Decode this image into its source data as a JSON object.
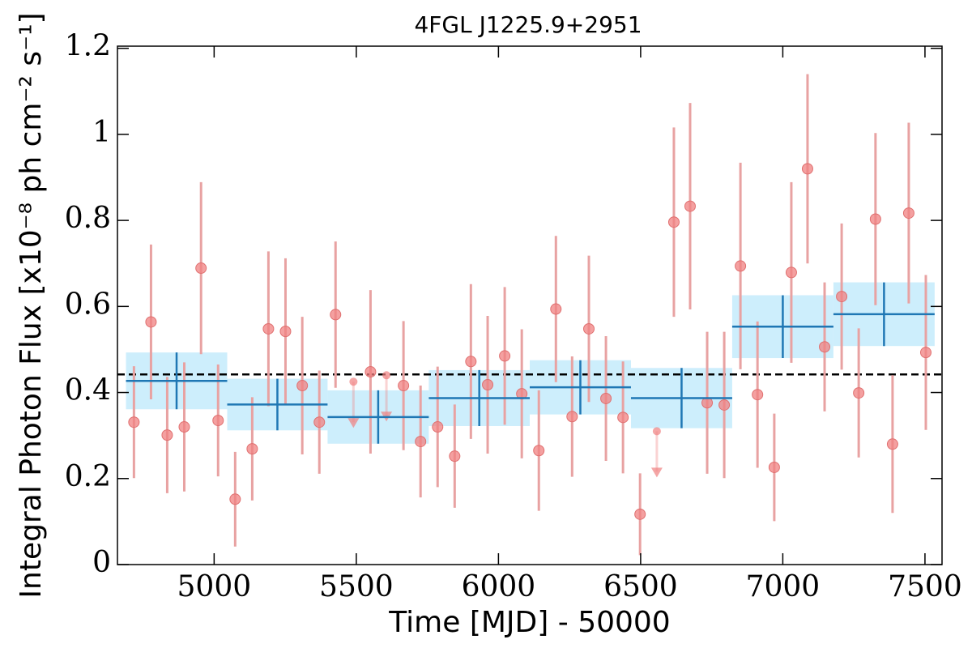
{
  "chart_data": {
    "type": "scatter",
    "title": "4FGL J1225.9+2951",
    "x_label": "Time [MJD] - 50000",
    "y_label": "Integral Photon Flux [x10⁻⁸ ph cm⁻² s⁻¹]",
    "xlim": [
      4660,
      7560
    ],
    "ylim": [
      0,
      1.205
    ],
    "xticks": [
      5000,
      5500,
      6000,
      6500,
      7000,
      7500
    ],
    "yticks": [
      0,
      0.2,
      0.4,
      0.6,
      0.8,
      1,
      1.2
    ],
    "mean": 0.442,
    "points": {
      "color": "#f08080",
      "error_color": "#e8a2a2",
      "x": [
        4718,
        4778,
        4835,
        4895,
        4954,
        5014,
        5074,
        5134,
        5191,
        5251,
        5310,
        5370,
        5427,
        5550,
        5666,
        5726,
        5786,
        5846,
        5903,
        5962,
        6022,
        6082,
        6142,
        6202,
        6259,
        6318,
        6378,
        6438,
        6498,
        6617,
        6674,
        6734,
        6794,
        6851,
        6911,
        6970,
        7030,
        7087,
        7147,
        7207,
        7267,
        7326,
        7386,
        7443,
        7503
      ],
      "values": [
        0.331,
        0.564,
        0.301,
        0.32,
        0.689,
        0.335,
        0.152,
        0.269,
        0.548,
        0.542,
        0.416,
        0.331,
        0.581,
        0.448,
        0.416,
        0.286,
        0.32,
        0.252,
        0.472,
        0.418,
        0.485,
        0.397,
        0.265,
        0.594,
        0.344,
        0.548,
        0.386,
        0.342,
        0.117,
        0.796,
        0.833,
        0.376,
        0.371,
        0.694,
        0.395,
        0.226,
        0.679,
        0.92,
        0.506,
        0.623,
        0.399,
        0.803,
        0.28,
        0.817,
        0.493
      ],
      "errors": [
        0.13,
        0.18,
        0.135,
        0.15,
        0.2,
        0.13,
        0.11,
        0.12,
        0.18,
        0.17,
        0.16,
        0.12,
        0.17,
        0.19,
        0.15,
        0.13,
        0.14,
        0.12,
        0.18,
        0.16,
        0.16,
        0.15,
        0.14,
        0.17,
        0.14,
        0.17,
        0.145,
        0.13,
        0.095,
        0.22,
        0.24,
        0.165,
        0.17,
        0.24,
        0.17,
        0.125,
        0.21,
        0.22,
        0.15,
        0.17,
        0.15,
        0.2,
        0.16,
        0.21,
        0.18
      ]
    },
    "upper_limits": {
      "color": "#f08080",
      "x": [
        5490,
        5606,
        6557
      ],
      "values": [
        0.425,
        0.44,
        0.31
      ]
    },
    "binned": {
      "color": "#1f77b4",
      "band_color": "#cdeefc",
      "edges": [
        4690,
        5046,
        5399,
        5755,
        6110,
        6466,
        6822,
        7178,
        7534
      ],
      "values": [
        0.427,
        0.372,
        0.343,
        0.387,
        0.412,
        0.387,
        0.553,
        0.582
      ],
      "errors": [
        0.066,
        0.06,
        0.062,
        0.065,
        0.063,
        0.07,
        0.073,
        0.074
      ]
    }
  }
}
